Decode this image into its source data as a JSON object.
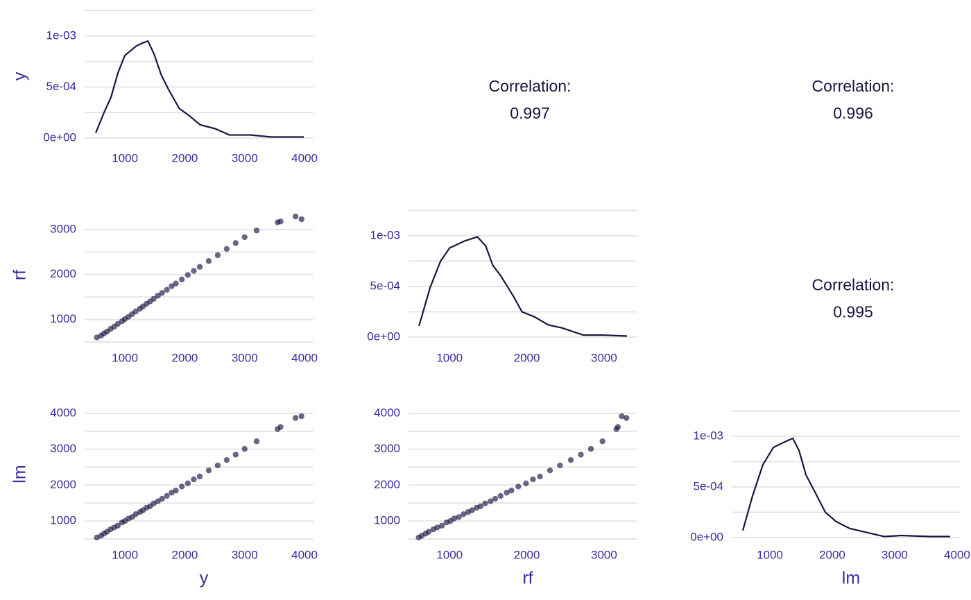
{
  "row_labels": [
    "y",
    "rf",
    "lm"
  ],
  "column_labels": [
    "y",
    "rf",
    "lm"
  ],
  "chart_data": [
    {
      "type": "line",
      "color": "#1a1440",
      "x": [
        512,
        651,
        767,
        884,
        1000,
        1186,
        1291,
        1384,
        1488,
        1605,
        1733,
        1907,
        2070,
        2256,
        2512,
        2744,
        3093,
        3442,
        3988
      ],
      "values": [
        5e-05,
        0.00025,
        0.0004,
        0.00064,
        0.00081,
        0.0009,
        0.00093,
        0.00095,
        0.00082,
        0.00062,
        0.00047,
        0.00029,
        0.00022,
        0.00013,
        9e-05,
        3e-05,
        3e-05,
        1e-05,
        1e-05
      ],
      "xlim": [
        326,
        4150
      ],
      "xticks": [
        1000,
        2000,
        3000,
        4000
      ],
      "ylim": [
        -4.1e-05,
        0.00125
      ],
      "yticks": [
        {
          "value": 0,
          "label": "0e+00"
        },
        {
          "value": 0.0005,
          "label": "5e-04"
        },
        {
          "value": 0.001,
          "label": "1e-03"
        }
      ],
      "yminor": [
        0.00025,
        0.00075,
        0.00125
      ]
    },
    {
      "type": "correlation",
      "label": "Correlation:",
      "value": 0.997
    },
    {
      "type": "correlation",
      "label": "Correlation:",
      "value": 0.996
    },
    {
      "type": "scatter",
      "color": "#1a1440",
      "x": [
        530,
        600,
        650,
        700,
        760,
        820,
        880,
        950,
        1000,
        1060,
        1120,
        1180,
        1250,
        1300,
        1360,
        1420,
        1480,
        1550,
        1620,
        1700,
        1780,
        1850,
        1950,
        2050,
        2150,
        2250,
        2400,
        2550,
        2700,
        2850,
        3000,
        3200,
        3550,
        3600,
        3850,
        3950
      ],
      "values": [
        600,
        640,
        690,
        730,
        790,
        840,
        900,
        960,
        1010,
        1060,
        1120,
        1180,
        1240,
        1290,
        1350,
        1400,
        1460,
        1530,
        1590,
        1660,
        1740,
        1800,
        1890,
        1990,
        2080,
        2170,
        2300,
        2430,
        2570,
        2700,
        2830,
        2980,
        3160,
        3180,
        3290,
        3230
      ],
      "xlim": [
        326,
        4150
      ],
      "xticks": [
        1000,
        2000,
        3000,
        4000
      ],
      "ylim": [
        500,
        3477
      ],
      "yticks": [
        1000,
        2000,
        3000
      ],
      "yminor": [
        500,
        1500,
        2500
      ]
    },
    {
      "type": "line",
      "color": "#1a1440",
      "x": [
        604,
        748,
        883,
        1000,
        1198,
        1360,
        1468,
        1559,
        1667,
        1829,
        1937,
        2099,
        2279,
        2459,
        2730,
        3000,
        3297
      ],
      "values": [
        0.00011,
        0.00049,
        0.00075,
        0.00088,
        0.00095,
        0.00099,
        0.0009,
        0.00071,
        0.0006,
        0.0004,
        0.00025,
        0.0002,
        0.00012,
        9e-05,
        2e-05,
        2e-05,
        1e-05
      ],
      "xlim": [
        468,
        3432
      ],
      "xticks": [
        1000,
        2000,
        3000
      ],
      "ylim": [
        -4.8e-05,
        0.001274
      ],
      "yticks": [
        {
          "value": 0,
          "label": "0e+00"
        },
        {
          "value": 0.0005,
          "label": "5e-04"
        },
        {
          "value": 0.001,
          "label": "1e-03"
        }
      ],
      "yminor": [
        0.00025,
        0.00075,
        0.00125
      ]
    },
    {
      "type": "correlation",
      "label": "Correlation:",
      "value": 0.995
    },
    {
      "type": "scatter",
      "color": "#1a1440",
      "x": [
        530,
        600,
        650,
        700,
        760,
        820,
        880,
        950,
        1000,
        1060,
        1120,
        1180,
        1250,
        1300,
        1360,
        1420,
        1480,
        1550,
        1620,
        1700,
        1780,
        1850,
        1950,
        2050,
        2150,
        2250,
        2400,
        2550,
        2700,
        2850,
        3000,
        3200,
        3550,
        3600,
        3850,
        3950
      ],
      "values": [
        540,
        590,
        650,
        700,
        770,
        820,
        870,
        960,
        1000,
        1070,
        1110,
        1190,
        1250,
        1300,
        1370,
        1410,
        1490,
        1550,
        1620,
        1700,
        1790,
        1850,
        1960,
        2050,
        2160,
        2240,
        2410,
        2550,
        2700,
        2850,
        3010,
        3220,
        3560,
        3620,
        3870,
        3920
      ],
      "xlim": [
        326,
        4150
      ],
      "xticks": [
        1000,
        2000,
        3000,
        4000
      ],
      "ylim": [
        500,
        4114
      ],
      "yticks": [
        1000,
        2000,
        3000,
        4000
      ],
      "yminor": [
        500,
        1500,
        2500,
        3500
      ]
    },
    {
      "type": "scatter",
      "color": "#1a1440",
      "x": [
        600,
        640,
        690,
        730,
        790,
        840,
        900,
        960,
        1010,
        1060,
        1120,
        1180,
        1240,
        1290,
        1350,
        1400,
        1460,
        1530,
        1590,
        1660,
        1740,
        1800,
        1890,
        1990,
        2080,
        2170,
        2300,
        2430,
        2570,
        2700,
        2830,
        2980,
        3160,
        3180,
        3290,
        3230
      ],
      "values": [
        540,
        590,
        650,
        700,
        770,
        820,
        870,
        960,
        1000,
        1070,
        1110,
        1190,
        1250,
        1300,
        1370,
        1410,
        1490,
        1550,
        1620,
        1700,
        1790,
        1850,
        1960,
        2050,
        2160,
        2240,
        2410,
        2550,
        2700,
        2850,
        3010,
        3220,
        3560,
        3620,
        3870,
        3920
      ],
      "xlim": [
        468,
        3432
      ],
      "xticks": [
        1000,
        2000,
        3000
      ],
      "ylim": [
        500,
        4114
      ],
      "yticks": [
        1000,
        2000,
        3000,
        4000
      ],
      "yminor": [
        500,
        1500,
        2500,
        3500
      ]
    },
    {
      "type": "line",
      "color": "#1a1440",
      "x": [
        567,
        722,
        889,
        1056,
        1222,
        1367,
        1467,
        1578,
        1722,
        1889,
        2056,
        2278,
        2556,
        2833,
        3111,
        3556,
        3889
      ],
      "values": [
        7e-05,
        0.00041,
        0.00072,
        0.00089,
        0.00094,
        0.00098,
        0.00086,
        0.00062,
        0.00045,
        0.00025,
        0.00016,
        9e-05,
        5e-05,
        1e-05,
        2e-05,
        1e-05,
        1e-05
      ],
      "xlim": [
        389,
        4056
      ],
      "xticks": [
        1000,
        2000,
        3000,
        4000
      ],
      "ylim": [
        -1.4e-05,
        0.001267
      ],
      "yticks": [
        {
          "value": 0,
          "label": "0e+00"
        },
        {
          "value": 0.0005,
          "label": "5e-04"
        },
        {
          "value": 0.001,
          "label": "1e-03"
        }
      ],
      "yminor": [
        0.00025,
        0.00075,
        0.00125
      ]
    }
  ]
}
